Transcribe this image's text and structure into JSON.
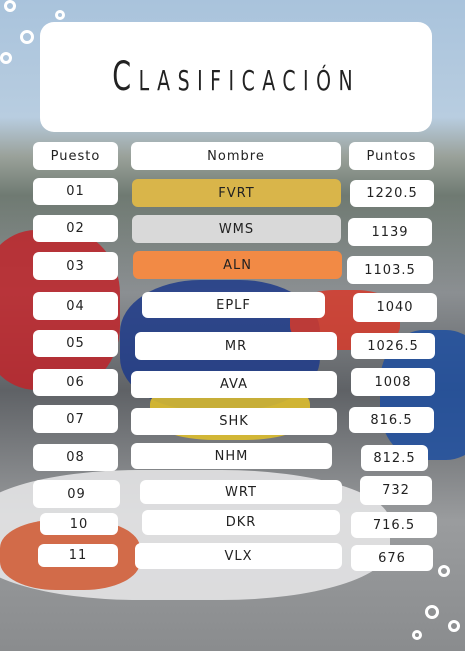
{
  "header": {
    "title": "Clasificación"
  },
  "table": {
    "columns": [
      "Puesto",
      "Nombre",
      "Puntos"
    ],
    "rows": [
      [
        "01",
        "FVRT",
        "1220.5"
      ],
      [
        "02",
        "WMS",
        "1139"
      ],
      [
        "03",
        "ALN",
        "1103.5"
      ],
      [
        "04",
        "EPLF",
        "1040"
      ],
      [
        "05",
        "MR",
        "1026.5"
      ],
      [
        "06",
        "AVA",
        "1008"
      ],
      [
        "07",
        "SHK",
        "816.5"
      ],
      [
        "08",
        "NHM",
        "812.5"
      ],
      [
        "09",
        "WRT",
        "732"
      ],
      [
        "10",
        "DKR",
        "716.5"
      ],
      [
        "11",
        "VLX",
        "676"
      ]
    ]
  }
}
